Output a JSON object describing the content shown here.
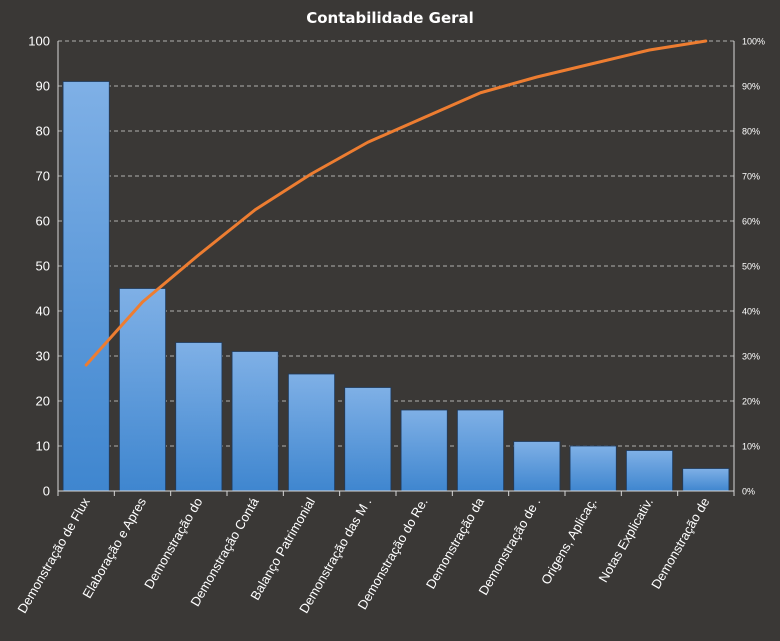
{
  "chart_data": {
    "type": "bar",
    "title": "Contabilidade  Geral",
    "categories": [
      "Demonstração de Flux",
      "Elaboração e Apres",
      "Demonstração do",
      "Demonstração Contá",
      "Balanço Patrimonial",
      "Demonstração das M .",
      "Demonstração do Re.",
      "Demonstração da",
      "Demonstração de .",
      "Origens, Aplicaç.",
      "Notas Explicativ.",
      "Demonstração de"
    ],
    "series": [
      {
        "values": [
          91,
          45,
          33,
          31,
          26,
          23,
          18,
          18,
          11,
          10,
          9,
          5
        ]
      },
      {
        "axis": "secondary",
        "type": "line",
        "values": [
          28,
          42,
          52.5,
          62.5,
          70.5,
          77.5,
          83,
          88.5,
          92,
          95,
          98,
          100
        ]
      }
    ],
    "ylim": [
      0,
      100
    ],
    "yticks": [
      "0",
      "10",
      "20",
      "30",
      "40",
      "50",
      "60",
      "70",
      "80",
      "90",
      "100"
    ],
    "y2lim": [
      0,
      100
    ],
    "y2ticks": [
      "0%",
      "10%",
      "20%",
      "30%",
      "40%",
      "50%",
      "60%",
      "70%",
      "80%",
      "90%",
      "100%"
    ],
    "grid": true,
    "legend": "none",
    "colors": {
      "background": "#3a3836",
      "bar_top": "#7fb0e6",
      "bar_bottom": "#3f86cf",
      "line": "#ed7d31",
      "text": "#ffffff"
    }
  }
}
